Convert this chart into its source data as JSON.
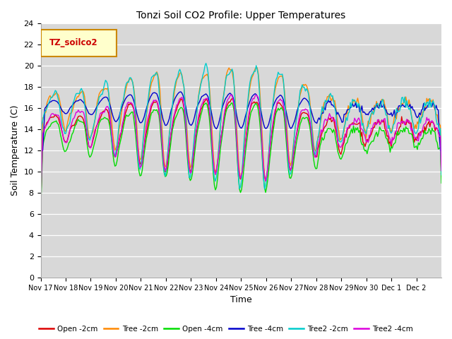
{
  "title": "Tonzi Soil CO2 Profile: Upper Temperatures",
  "xlabel": "Time",
  "ylabel": "Soil Temperature (C)",
  "ylim": [
    0,
    24
  ],
  "yticks": [
    0,
    2,
    4,
    6,
    8,
    10,
    12,
    14,
    16,
    18,
    20,
    22,
    24
  ],
  "x_tick_labels": [
    "Nov 17",
    "Nov 18",
    "Nov 19",
    "Nov 20",
    "Nov 21",
    "Nov 22",
    "Nov 23",
    "Nov 24",
    "Nov 25",
    "Nov 26",
    "Nov 27",
    "Nov 28",
    "Nov 29",
    "Nov 30",
    "Dec 1",
    "Dec 2"
  ],
  "series_colors": {
    "Open -2cm": "#dd0000",
    "Tree -2cm": "#ff8800",
    "Open -4cm": "#00dd00",
    "Tree -4cm": "#0000cc",
    "Tree2 -2cm": "#00cccc",
    "Tree2 -4cm": "#dd00dd"
  },
  "legend_label": "TZ_soilco2",
  "bg_color": "#d8d8d8",
  "fig_bg": "#ffffff",
  "linewidth": 1.0
}
